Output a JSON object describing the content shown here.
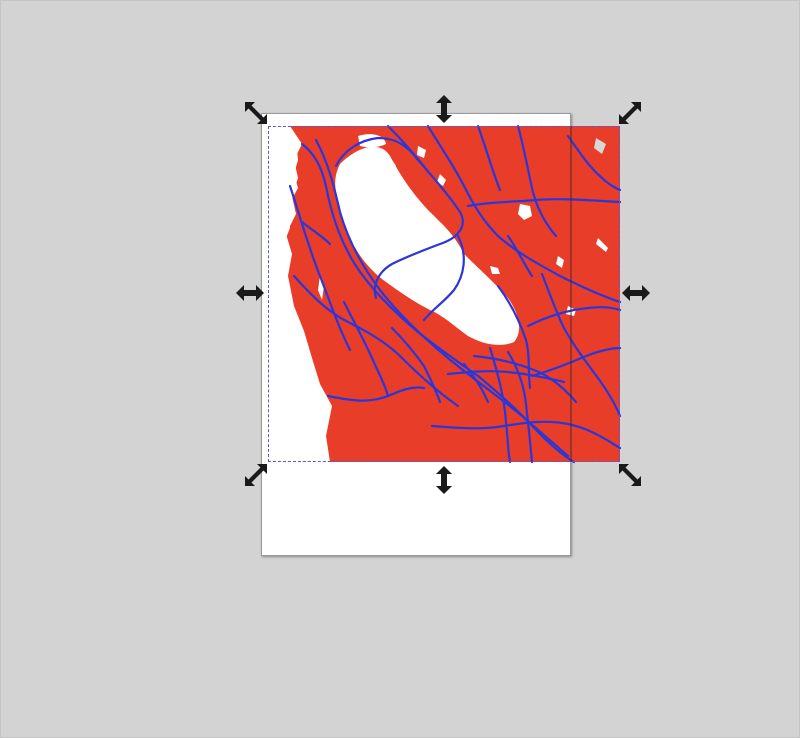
{
  "canvas": {
    "background_color": "#d3d3d3",
    "page_color": "#ffffff"
  },
  "artwork": {
    "land_color": "#e83e29",
    "water_color": "#ffffff",
    "road_color": "#2b36d9"
  },
  "selection": {
    "bbox_color": "#5a5ad0",
    "handle_color": "#1a1a1a",
    "handles": [
      {
        "name": "scale-handle-top-left",
        "icon": "diagonal-arrow-nw-se-icon"
      },
      {
        "name": "scale-handle-top",
        "icon": "vertical-arrow-icon"
      },
      {
        "name": "scale-handle-top-right",
        "icon": "diagonal-arrow-ne-sw-icon"
      },
      {
        "name": "scale-handle-left",
        "icon": "horizontal-arrow-icon"
      },
      {
        "name": "scale-handle-right",
        "icon": "horizontal-arrow-icon"
      },
      {
        "name": "scale-handle-bottom-left",
        "icon": "diagonal-arrow-ne-sw-icon"
      },
      {
        "name": "scale-handle-bottom",
        "icon": "vertical-arrow-icon"
      },
      {
        "name": "scale-handle-bottom-right",
        "icon": "diagonal-arrow-nw-se-icon"
      }
    ]
  }
}
